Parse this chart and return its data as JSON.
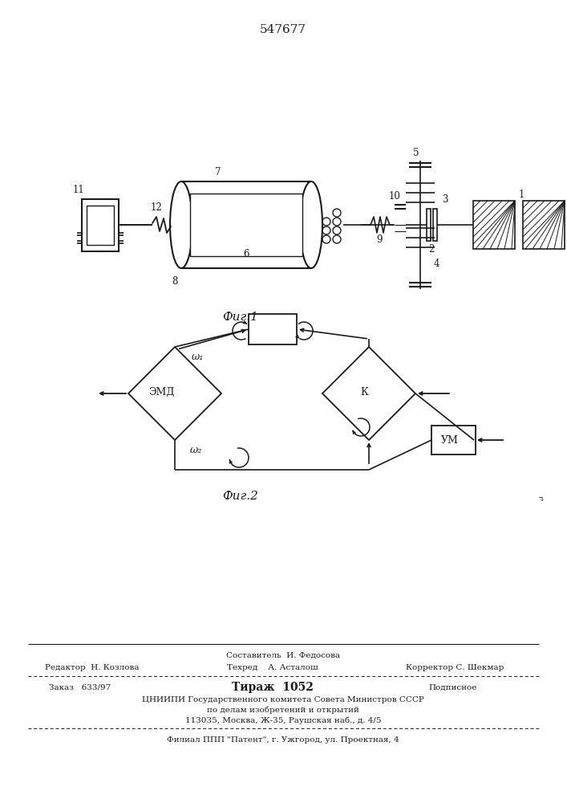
{
  "title": "547677",
  "fig1_caption": "Фиг.1",
  "fig2_caption": "Фиг.2",
  "bg_color": "#ffffff",
  "lc": "#1a1a1a",
  "footer_sestavitel": "Составитель  И. Федосова",
  "footer_redaktor": "Редактор  Н. Козлова",
  "footer_tehred": "Техред    А. Асталош",
  "footer_korrektor": "Корректор С. Шекмар",
  "footer_zakaz": "Заказ   633/97",
  "footer_tirazh": "Тираж  1052",
  "footer_podpisnoe": "Подписное",
  "footer_cniipи": "ЦНИИПИ Государственного комитета Совета Министров СССР",
  "footer_delam": "по делам изобретений и открытий",
  "footer_address": "113035, Москва, Ж-35, Раушская наб., д. 4/5",
  "footer_filial": "Филиал ППП \"Патент\", г. Ужгород, ул. Проектная, 4"
}
